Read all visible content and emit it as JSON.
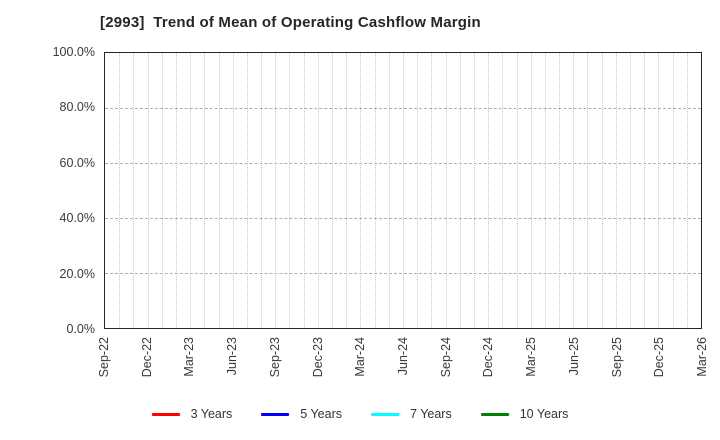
{
  "chart_data": {
    "type": "line",
    "title": "[2993]  Trend of Mean of Operating Cashflow Margin",
    "x_axis": {
      "tick_labels": [
        "Sep-22",
        "Dec-22",
        "Mar-23",
        "Jun-23",
        "Sep-23",
        "Dec-23",
        "Mar-24",
        "Jun-24",
        "Sep-24",
        "Dec-24",
        "Mar-25",
        "Jun-25",
        "Sep-25",
        "Dec-25",
        "Mar-26"
      ],
      "tick_label_rotation_deg": 90,
      "months_span": 42,
      "minor_gridline_interval": "monthly"
    },
    "y_axis": {
      "tick_labels": [
        "0.0%",
        "20.0%",
        "40.0%",
        "60.0%",
        "80.0%",
        "100.0%"
      ],
      "tick_values": [
        0,
        20,
        40,
        60,
        80,
        100
      ],
      "ylim": [
        0,
        100
      ],
      "gridline_values": [
        20,
        40,
        60,
        80
      ]
    },
    "grid": true,
    "legend_position": "bottom-center",
    "series": [
      {
        "name": "3 Years",
        "color": "#ff0000",
        "x": [],
        "values": []
      },
      {
        "name": "5 Years",
        "color": "#0000ff",
        "x": [],
        "values": []
      },
      {
        "name": "7 Years",
        "color": "#00ffff",
        "x": [],
        "values": []
      },
      {
        "name": "10 Years",
        "color": "#008000",
        "x": [],
        "values": []
      }
    ],
    "no_data_plotted": true
  }
}
